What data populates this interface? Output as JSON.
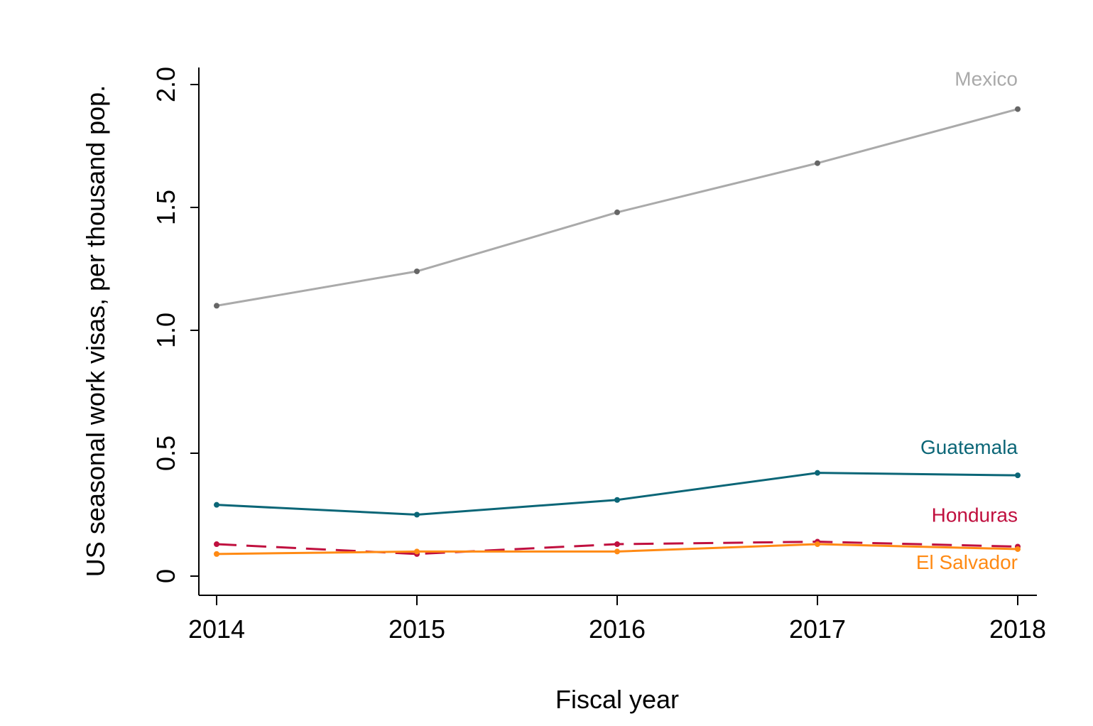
{
  "chart_data": {
    "type": "line",
    "title": "",
    "xlabel": "Fiscal year",
    "ylabel": "US seasonal work visas, per thousand pop.",
    "x": [
      2014,
      2015,
      2016,
      2017,
      2018
    ],
    "x_tick_labels": [
      "2014",
      "2015",
      "2016",
      "2017",
      "2018"
    ],
    "ylim": [
      0,
      2.0
    ],
    "y_ticks": [
      0,
      0.5,
      1.0,
      1.5,
      2.0
    ],
    "y_tick_labels": [
      "0",
      "0.5",
      "1.0",
      "1.5",
      "2.0"
    ],
    "grid": false,
    "legend": "direct labels at right end of lines",
    "series": [
      {
        "name": "Mexico",
        "values": [
          1.1,
          1.24,
          1.48,
          1.68,
          1.9
        ],
        "color": "#aaaaaa",
        "marker_color": "#666666",
        "dash": "solid"
      },
      {
        "name": "Guatemala",
        "values": [
          0.29,
          0.25,
          0.31,
          0.42,
          0.41
        ],
        "color": "#0b6677",
        "marker_color": "#0b6677",
        "dash": "solid"
      },
      {
        "name": "Honduras",
        "values": [
          0.13,
          0.09,
          0.13,
          0.14,
          0.12
        ],
        "color": "#c0103f",
        "marker_color": "#c0103f",
        "dash": "dashed"
      },
      {
        "name": "El Salvador",
        "values": [
          0.09,
          0.1,
          0.1,
          0.13,
          0.11
        ],
        "color": "#ff8a14",
        "marker_color": "#ff8a14",
        "dash": "solid"
      }
    ]
  }
}
